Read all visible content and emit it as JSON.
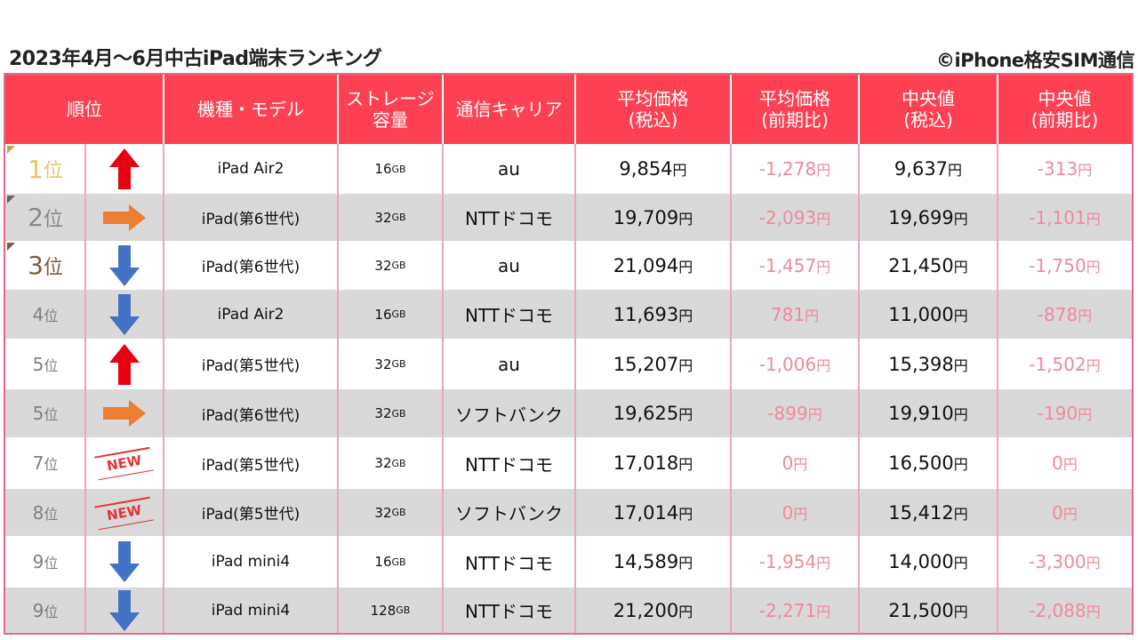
{
  "title": "2023年4月〜6月中古iPad端末ランキング",
  "credit": "©iPhone格安SIM通信",
  "colors": {
    "header_bg": "#fd4052",
    "up": "#e60012",
    "flat": "#ed7d31",
    "down": "#4472c4",
    "diff": "#f08a9a",
    "new": "#e4333a"
  },
  "headers": {
    "rank": "順位",
    "model": "機種・モデル",
    "storage": "ストレージ\n容量",
    "carrier": "通信キャリア",
    "avg_price": "平均価格\n(税込)",
    "avg_change": "平均価格\n(前期比)",
    "median": "中央値\n(税込)",
    "median_change": "中央値\n(前期比)"
  },
  "rows": [
    {
      "rank": "1",
      "rank_suffix": "位",
      "trend": "up",
      "model": "iPad Air2",
      "storage": "16",
      "storage_unit": "GB",
      "carrier": "au",
      "avg_price": "9,854",
      "avg_change": "-1,278",
      "median": "9,637",
      "median_change": "-313",
      "yen": "円"
    },
    {
      "rank": "2",
      "rank_suffix": "位",
      "trend": "flat",
      "model": "iPad(第6世代)",
      "storage": "32",
      "storage_unit": "GB",
      "carrier": "NTTドコモ",
      "avg_price": "19,709",
      "avg_change": "-2,093",
      "median": "19,699",
      "median_change": "-1,101",
      "yen": "円"
    },
    {
      "rank": "3",
      "rank_suffix": "位",
      "trend": "down",
      "model": "iPad(第6世代)",
      "storage": "32",
      "storage_unit": "GB",
      "carrier": "au",
      "avg_price": "21,094",
      "avg_change": "-1,457",
      "median": "21,450",
      "median_change": "-1,750",
      "yen": "円"
    },
    {
      "rank": "4",
      "rank_suffix": "位",
      "trend": "down",
      "model": "iPad Air2",
      "storage": "16",
      "storage_unit": "GB",
      "carrier": "NTTドコモ",
      "avg_price": "11,693",
      "avg_change": "781",
      "median": "11,000",
      "median_change": "-878",
      "yen": "円"
    },
    {
      "rank": "5",
      "rank_suffix": "位",
      "trend": "up",
      "model": "iPad(第5世代)",
      "storage": "32",
      "storage_unit": "GB",
      "carrier": "au",
      "avg_price": "15,207",
      "avg_change": "-1,006",
      "median": "15,398",
      "median_change": "-1,502",
      "yen": "円"
    },
    {
      "rank": "5",
      "rank_suffix": "位",
      "trend": "flat",
      "model": "iPad(第6世代)",
      "storage": "32",
      "storage_unit": "GB",
      "carrier": "ソフトバンク",
      "avg_price": "19,625",
      "avg_change": "-899",
      "median": "19,910",
      "median_change": "-190",
      "yen": "円"
    },
    {
      "rank": "7",
      "rank_suffix": "位",
      "trend": "new",
      "new_label": "NEW",
      "model": "iPad(第5世代)",
      "storage": "32",
      "storage_unit": "GB",
      "carrier": "NTTドコモ",
      "avg_price": "17,018",
      "avg_change": "0",
      "median": "16,500",
      "median_change": "0",
      "yen": "円"
    },
    {
      "rank": "8",
      "rank_suffix": "位",
      "trend": "new",
      "new_label": "NEW",
      "model": "iPad(第5世代)",
      "storage": "32",
      "storage_unit": "GB",
      "carrier": "ソフトバンク",
      "avg_price": "17,014",
      "avg_change": "0",
      "median": "15,412",
      "median_change": "0",
      "yen": "円"
    },
    {
      "rank": "9",
      "rank_suffix": "位",
      "trend": "down",
      "model": "iPad mini4",
      "storage": "16",
      "storage_unit": "GB",
      "carrier": "NTTドコモ",
      "avg_price": "14,589",
      "avg_change": "-1,954",
      "median": "14,000",
      "median_change": "-3,300",
      "yen": "円"
    },
    {
      "rank": "9",
      "rank_suffix": "位",
      "trend": "down",
      "model": "iPad mini4",
      "storage": "128",
      "storage_unit": "GB",
      "carrier": "NTTドコモ",
      "avg_price": "21,200",
      "avg_change": "-2,271",
      "median": "21,500",
      "median_change": "-2,088",
      "yen": "円"
    }
  ]
}
